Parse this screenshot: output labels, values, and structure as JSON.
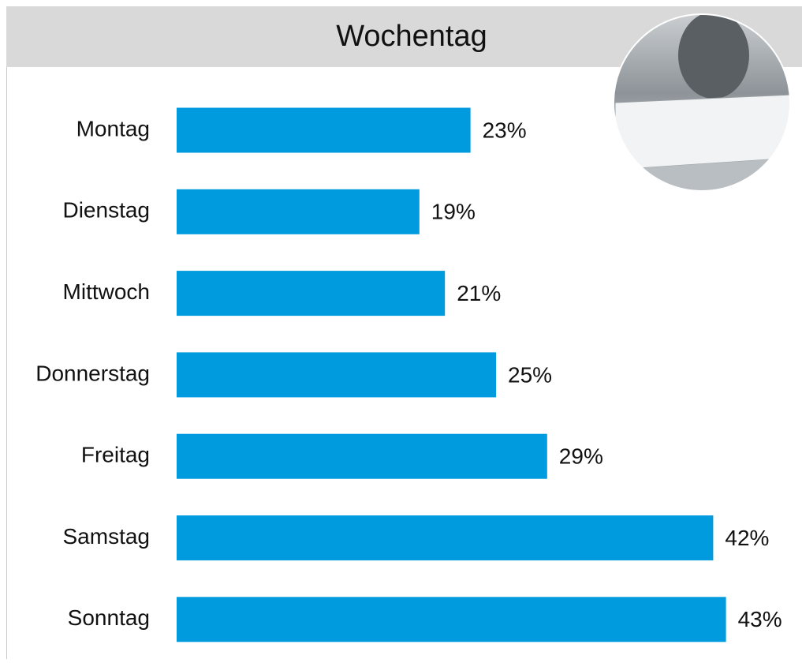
{
  "chart_data": {
    "type": "bar",
    "orientation": "horizontal",
    "title": "Wochentag",
    "categories": [
      "Montag",
      "Dienstag",
      "Mittwoch",
      "Donnerstag",
      "Freitag",
      "Samstag",
      "Sonntag"
    ],
    "values": [
      23,
      19,
      21,
      25,
      29,
      42,
      43
    ],
    "value_labels": [
      "23%",
      "19%",
      "21%",
      "25%",
      "29%",
      "42%",
      "43%"
    ],
    "color": "#009ade"
  }
}
